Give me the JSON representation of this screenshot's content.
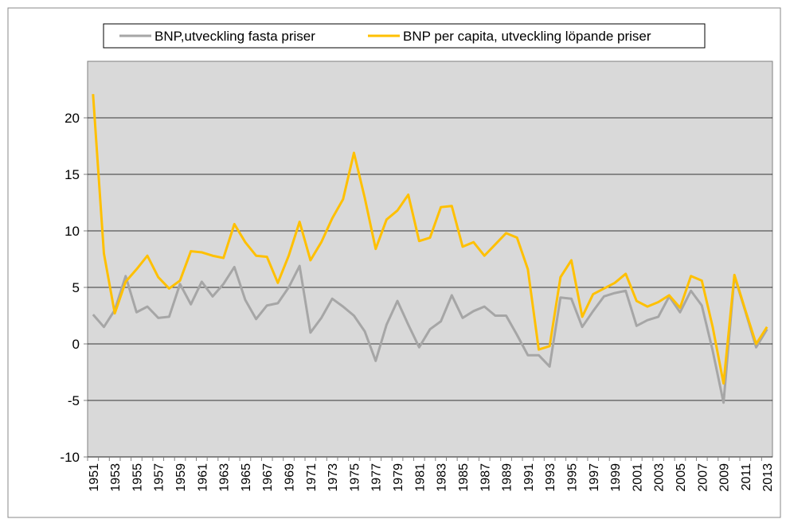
{
  "chart_data": {
    "type": "line",
    "y_label": "%",
    "categories": [
      "1951",
      null,
      "1953",
      null,
      "1955",
      null,
      "1957",
      null,
      "1959",
      null,
      "1961",
      null,
      "1963",
      null,
      "1965",
      null,
      "1967",
      null,
      "1969",
      null,
      "1971",
      null,
      "1973",
      null,
      "1975",
      null,
      "1977",
      null,
      "1979",
      null,
      "1981",
      null,
      "1983",
      null,
      "1985",
      null,
      "1987",
      null,
      "1989",
      null,
      "1991",
      null,
      "1993",
      null,
      "1995",
      null,
      "1997",
      null,
      "1999",
      null,
      "2001",
      null,
      "2003",
      null,
      "2005",
      null,
      "2007",
      null,
      "2009",
      null,
      "2011",
      null,
      "2013"
    ],
    "series": [
      {
        "name": "BNP,utveckling fasta priser",
        "color": "#a6a6a6",
        "values": [
          2.6,
          1.5,
          3.0,
          6.0,
          2.8,
          3.3,
          2.3,
          2.4,
          5.3,
          3.5,
          5.5,
          4.2,
          5.3,
          6.8,
          3.9,
          2.2,
          3.4,
          3.6,
          5.0,
          6.9,
          1.0,
          2.3,
          4.0,
          3.3,
          2.5,
          1.1,
          -1.5,
          1.7,
          3.8,
          1.7,
          -0.3,
          1.3,
          2.0,
          4.3,
          2.3,
          2.9,
          3.3,
          2.5,
          2.5,
          0.8,
          -1.0,
          -1.0,
          -2.0,
          4.1,
          4.0,
          1.5,
          2.9,
          4.2,
          4.5,
          4.7,
          1.6,
          2.1,
          2.4,
          4.2,
          2.8,
          4.7,
          3.4,
          -0.6,
          -5.2,
          6.0,
          2.9,
          -0.3,
          1.3
        ]
      },
      {
        "name": "BNP per capita, utveckling löpande priser",
        "color": "#ffc000",
        "values": [
          22.1,
          8.0,
          2.7,
          5.5,
          6.6,
          7.8,
          5.9,
          4.9,
          5.6,
          8.2,
          8.1,
          7.8,
          7.6,
          10.6,
          9.0,
          7.8,
          7.7,
          5.4,
          7.8,
          10.8,
          7.4,
          9.0,
          11.1,
          12.8,
          16.9,
          12.9,
          8.4,
          11.0,
          11.8,
          13.2,
          9.1,
          9.4,
          12.1,
          12.2,
          8.6,
          9.0,
          7.8,
          8.8,
          9.8,
          9.4,
          6.6,
          -0.5,
          -0.2,
          5.9,
          7.4,
          2.4,
          4.4,
          4.9,
          5.4,
          6.2,
          3.8,
          3.3,
          3.7,
          4.3,
          3.2,
          6.0,
          5.6,
          1.5,
          -3.5,
          6.1,
          3.0,
          0.0,
          1.5
        ]
      }
    ],
    "ylim": [
      -10,
      25
    ],
    "yticks": [
      -10,
      -5,
      0,
      5,
      10,
      15,
      20
    ],
    "grid": true,
    "plot_background": "#d9d9d9",
    "legend": "top"
  }
}
